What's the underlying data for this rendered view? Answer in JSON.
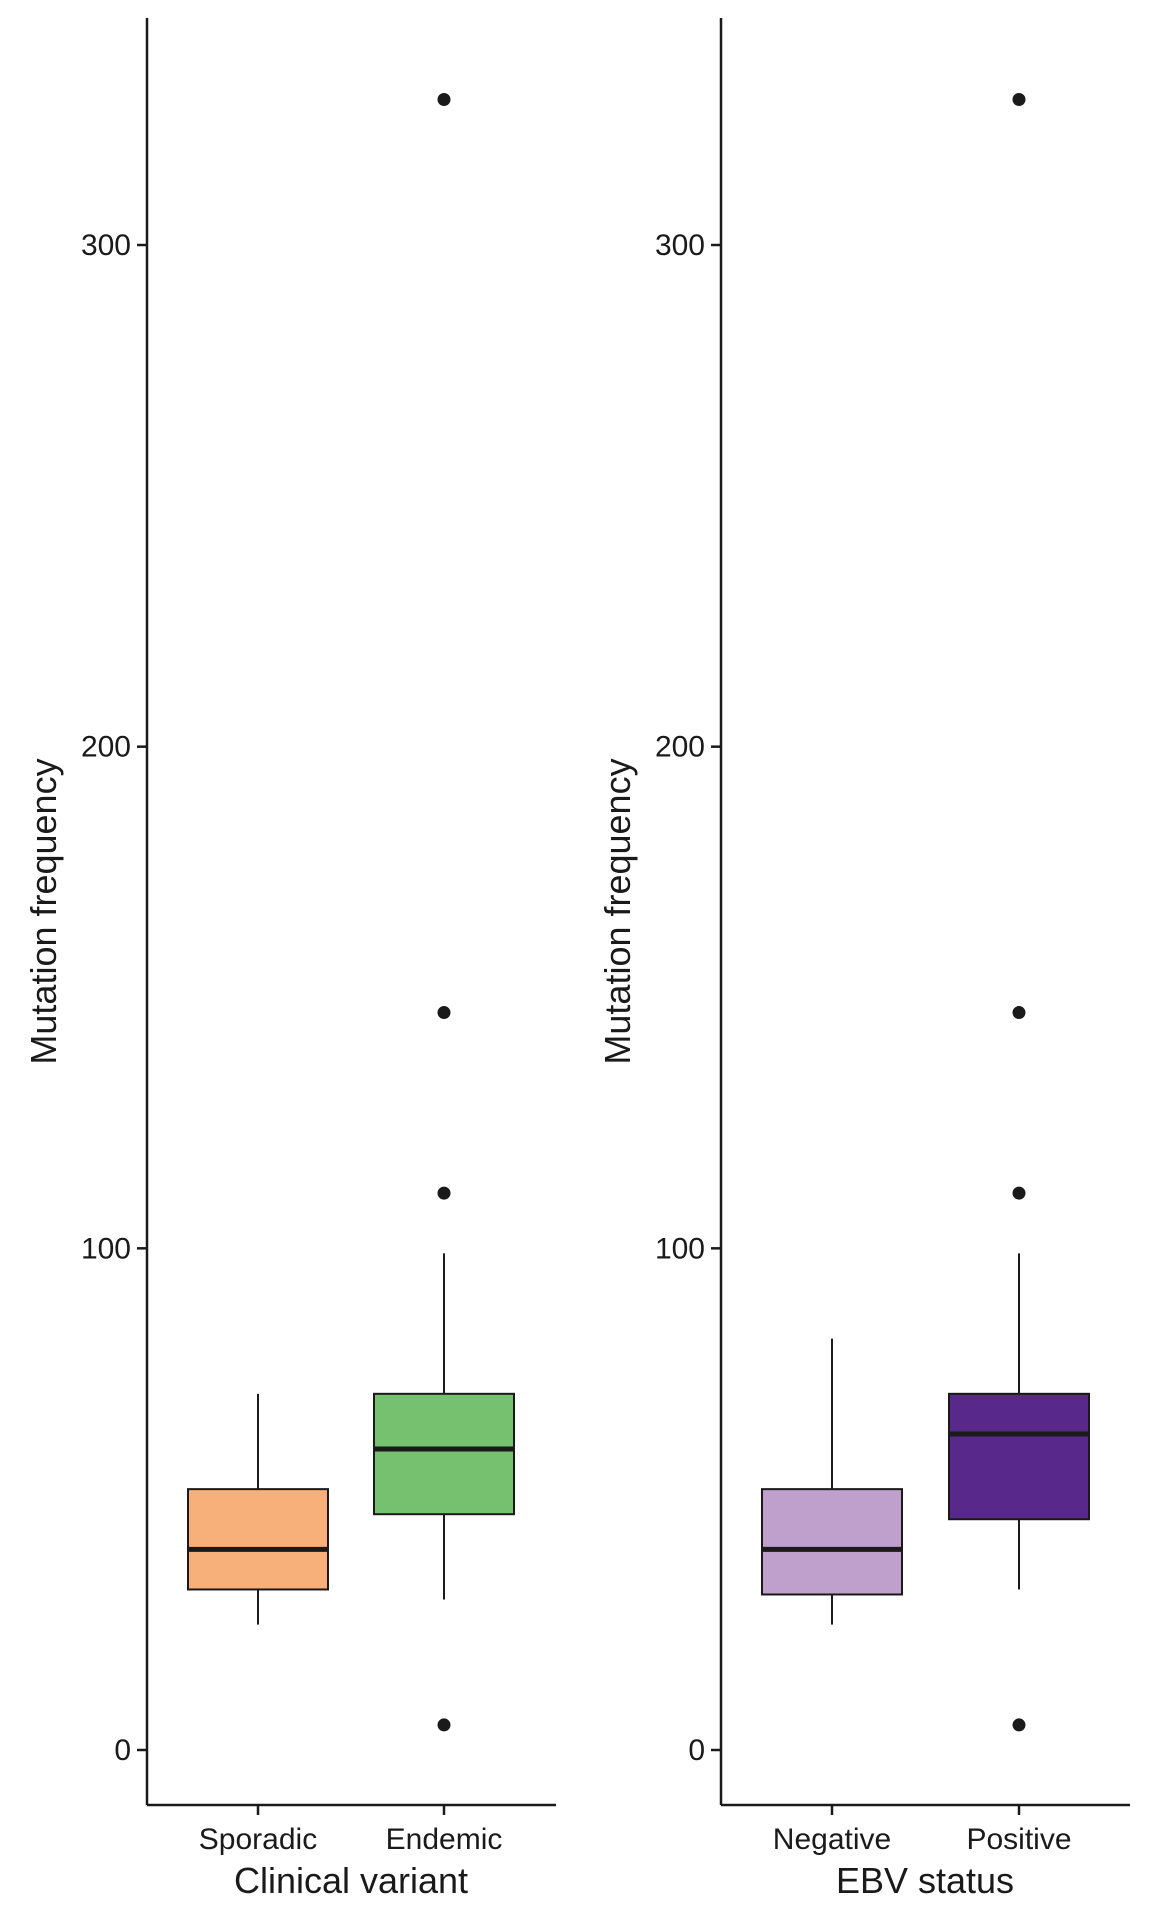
{
  "chart_data": [
    {
      "type": "box",
      "xlabel": "Clinical variant",
      "ylabel": "Mutation frequency",
      "ylim": [
        -11,
        341
      ],
      "yticks": [
        0,
        100,
        200,
        300
      ],
      "grid": false,
      "legend": "none",
      "categories": [
        "Sporadic",
        "Endemic"
      ],
      "boxes": [
        {
          "category": "Sporadic",
          "fill": "#f8b07a",
          "whisker_low": 25,
          "q1": 32,
          "median": 40,
          "q3": 52,
          "whisker_high": 71,
          "outliers": []
        },
        {
          "category": "Endemic",
          "fill": "#75c16f",
          "whisker_low": 30,
          "q1": 47,
          "median": 60,
          "q3": 71,
          "whisker_high": 99,
          "outliers": [
            5,
            111,
            147,
            329
          ]
        }
      ]
    },
    {
      "type": "box",
      "xlabel": "EBV status",
      "ylabel": "Mutation frequency",
      "ylim": [
        -11,
        341
      ],
      "yticks": [
        0,
        100,
        200,
        300
      ],
      "grid": false,
      "legend": "none",
      "categories": [
        "Negative",
        "Positive"
      ],
      "boxes": [
        {
          "category": "Negative",
          "fill": "#bf9fcc",
          "whisker_low": 25,
          "q1": 31,
          "median": 40,
          "q3": 52,
          "whisker_high": 82,
          "outliers": []
        },
        {
          "category": "Positive",
          "fill": "#58288b",
          "whisker_low": 32,
          "q1": 46,
          "median": 63,
          "q3": 71,
          "whisker_high": 99,
          "outliers": [
            5,
            111,
            147,
            329
          ]
        }
      ]
    }
  ]
}
